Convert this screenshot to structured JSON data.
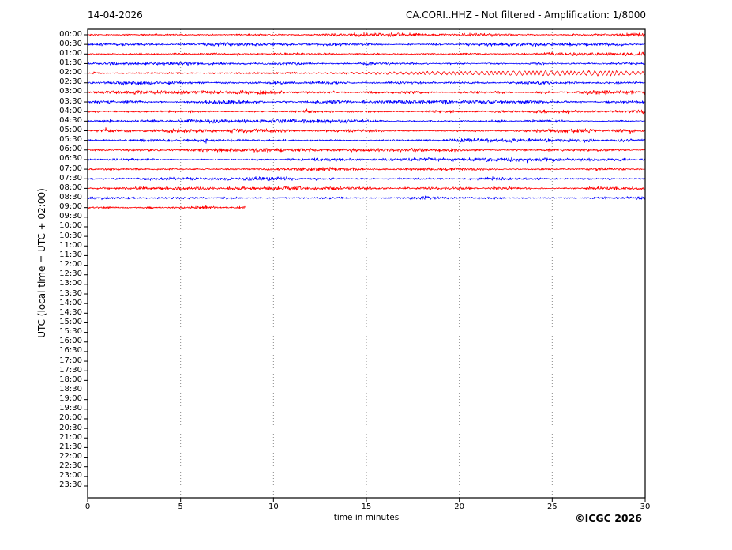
{
  "header": {
    "date": "14-04-2026",
    "station_title": "CA.CORI..HHZ - Not filtered - Amplification: 1/8000"
  },
  "axes": {
    "x_label": "time in minutes",
    "y_label": "UTC (local time = UTC + 02:00)",
    "x_ticks": [
      0,
      5,
      10,
      15,
      20,
      25,
      30
    ],
    "y_tick_labels": [
      "00:00",
      "00:30",
      "01:00",
      "01:30",
      "02:00",
      "02:30",
      "03:00",
      "03:30",
      "04:00",
      "04:30",
      "05:00",
      "05:30",
      "06:00",
      "06:30",
      "07:00",
      "07:30",
      "08:00",
      "08:30",
      "09:00",
      "09:30",
      "10:00",
      "10:30",
      "11:00",
      "11:30",
      "12:00",
      "12:30",
      "13:00",
      "13:30",
      "14:00",
      "14:30",
      "15:00",
      "15:30",
      "16:00",
      "16:30",
      "17:00",
      "17:30",
      "18:00",
      "18:30",
      "19:00",
      "19:30",
      "20:00",
      "20:30",
      "21:00",
      "21:30",
      "22:00",
      "22:30",
      "23:00",
      "23:30"
    ]
  },
  "footer": {
    "copyright": "©ICGC 2026"
  },
  "chart_data": {
    "type": "line",
    "subtype": "helicorder-seismogram",
    "title": "CA.CORI..HHZ - Not filtered - Amplification: 1/8000",
    "date": "14-04-2026",
    "xlabel": "time in minutes",
    "ylabel": "UTC (local time = UTC + 02:00)",
    "xlim": [
      0,
      30
    ],
    "xticks": [
      0,
      5,
      10,
      15,
      20,
      25,
      30
    ],
    "grid": "vertical dotted gridlines every 5 minutes",
    "minutes_per_row": 30,
    "colors": {
      "even_rows": "#ff0000",
      "odd_rows": "#0000ff",
      "grid": "#888888",
      "frame": "#000000"
    },
    "rows": [
      "00:00",
      "00:30",
      "01:00",
      "01:30",
      "02:00",
      "02:30",
      "03:00",
      "03:30",
      "04:00",
      "04:30",
      "05:00",
      "05:30",
      "06:00",
      "06:30",
      "07:00",
      "07:30",
      "08:00",
      "08:30",
      "09:00",
      "09:30",
      "10:00",
      "10:30",
      "11:00",
      "11:30",
      "12:00",
      "12:30",
      "13:00",
      "13:30",
      "14:00",
      "14:30",
      "15:00",
      "15:30",
      "16:00",
      "16:30",
      "17:00",
      "17:30",
      "18:00",
      "18:30",
      "19:00",
      "19:30",
      "20:00",
      "20:30",
      "21:00",
      "21:30",
      "22:00",
      "22:30",
      "23:00",
      "23:30"
    ],
    "traces": [
      {
        "label": "00:00",
        "color": "#ff0000",
        "start_min": 0,
        "end_min": 30,
        "noise_level": 1.0,
        "character": "background noise"
      },
      {
        "label": "00:30",
        "color": "#0000ff",
        "start_min": 0,
        "end_min": 30,
        "noise_level": 1.0,
        "character": "background noise"
      },
      {
        "label": "01:00",
        "color": "#ff0000",
        "start_min": 0,
        "end_min": 30,
        "noise_level": 0.95,
        "character": "background noise"
      },
      {
        "label": "01:30",
        "color": "#0000ff",
        "start_min": 0,
        "end_min": 30,
        "noise_level": 1.0,
        "character": "background noise"
      },
      {
        "label": "02:00",
        "color": "#ff0000",
        "start_min": 0,
        "end_min": 30,
        "noise_level": 0.9,
        "character": "emergent oscillatory signal beginning ~min 12, strongest ~min 19-27, continuing to end of row",
        "event": {
          "start_min": 12,
          "peak_min": 25,
          "end_min": 30,
          "envelope": [
            [
              12,
              0.4
            ],
            [
              16,
              1.0
            ],
            [
              19,
              1.8
            ],
            [
              22,
              2.3
            ],
            [
              25,
              3.0
            ],
            [
              26.5,
              2.2
            ],
            [
              28,
              2.6
            ],
            [
              30,
              1.7
            ]
          ]
        }
      },
      {
        "label": "02:30",
        "color": "#0000ff",
        "start_min": 0,
        "end_min": 30,
        "noise_level": 1.0,
        "character": "background noise"
      },
      {
        "label": "03:00",
        "color": "#ff0000",
        "start_min": 0,
        "end_min": 30,
        "noise_level": 1.0,
        "character": "background noise"
      },
      {
        "label": "03:30",
        "color": "#0000ff",
        "start_min": 0,
        "end_min": 30,
        "noise_level": 1.05,
        "character": "background noise"
      },
      {
        "label": "04:00",
        "color": "#ff0000",
        "start_min": 0,
        "end_min": 30,
        "noise_level": 0.95,
        "character": "background noise"
      },
      {
        "label": "04:30",
        "color": "#0000ff",
        "start_min": 0,
        "end_min": 30,
        "noise_level": 1.0,
        "character": "background noise"
      },
      {
        "label": "05:00",
        "color": "#ff0000",
        "start_min": 0,
        "end_min": 30,
        "noise_level": 0.95,
        "character": "background noise"
      },
      {
        "label": "05:30",
        "color": "#0000ff",
        "start_min": 0,
        "end_min": 30,
        "noise_level": 1.05,
        "character": "background noise"
      },
      {
        "label": "06:00",
        "color": "#ff0000",
        "start_min": 0,
        "end_min": 30,
        "noise_level": 1.0,
        "character": "background noise"
      },
      {
        "label": "06:30",
        "color": "#0000ff",
        "start_min": 0,
        "end_min": 30,
        "noise_level": 1.0,
        "character": "background noise"
      },
      {
        "label": "07:00",
        "color": "#ff0000",
        "start_min": 0,
        "end_min": 30,
        "noise_level": 0.95,
        "character": "background noise"
      },
      {
        "label": "07:30",
        "color": "#0000ff",
        "start_min": 0,
        "end_min": 30,
        "noise_level": 1.0,
        "character": "background noise"
      },
      {
        "label": "08:00",
        "color": "#ff0000",
        "start_min": 0,
        "end_min": 30,
        "noise_level": 1.0,
        "character": "background noise"
      },
      {
        "label": "08:30",
        "color": "#0000ff",
        "start_min": 0,
        "end_min": 30,
        "noise_level": 1.0,
        "character": "background noise"
      },
      {
        "label": "09:00",
        "color": "#ff0000",
        "start_min": 0,
        "end_min": 8.5,
        "noise_level": 1.0,
        "character": "recording stops at ~8.5 minutes"
      }
    ]
  }
}
